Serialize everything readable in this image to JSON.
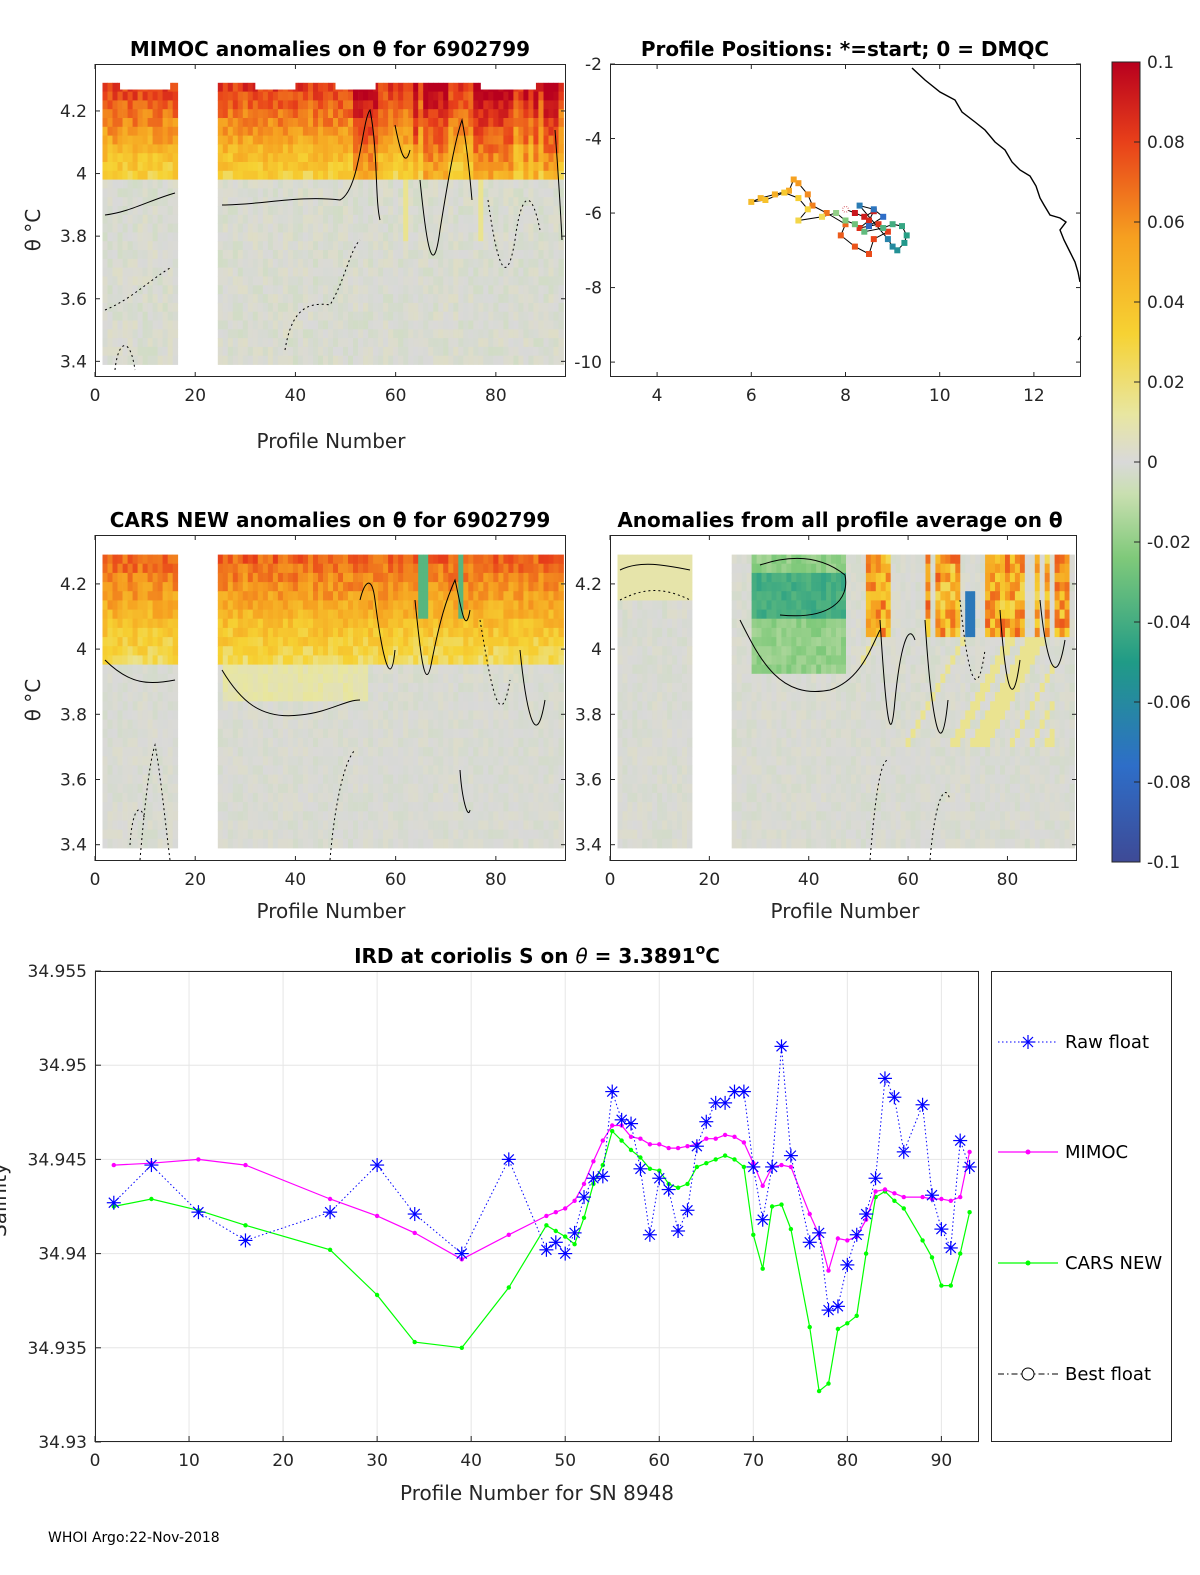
{
  "footer": "WHOI Argo:22-Nov-2018",
  "colorbar": {
    "ticks": [
      "0.1",
      "0.08",
      "0.06",
      "0.04",
      "0.02",
      "0",
      "-0.02",
      "-0.04",
      "-0.06",
      "-0.08",
      "-0.1"
    ],
    "range": [
      -0.1,
      0.1
    ]
  },
  "chart_data": [
    {
      "type": "heatmap",
      "title": "MIMOC anomalies on θ  for 6902799",
      "xlabel": "Profile Number",
      "ylabel": "θ °C",
      "xlim": [
        0,
        94
      ],
      "ylim": [
        3.35,
        4.35
      ],
      "xticks": [
        "0",
        "20",
        "40",
        "60",
        "80"
      ],
      "yticks": [
        "3.4",
        "3.6",
        "3.8",
        "4",
        "4.2"
      ],
      "gap_profiles": [
        17,
        25
      ]
    },
    {
      "type": "scatter",
      "title": "Profile Positions: *=start; 0 = DMQC",
      "xlim": [
        3,
        13
      ],
      "ylim": [
        -10.4,
        -2
      ],
      "xticks": [
        "4",
        "6",
        "8",
        "10",
        "12"
      ],
      "yticks": [
        "-2",
        "-4",
        "-6",
        "-8",
        "-10"
      ],
      "start_lon": 8.0,
      "start_lat": -5.9
    },
    {
      "type": "heatmap",
      "title": "CARS NEW anomalies on θ for 6902799",
      "xlabel": "Profile Number",
      "ylabel": "θ °C",
      "xlim": [
        0,
        94
      ],
      "ylim": [
        3.35,
        4.35
      ],
      "xticks": [
        "0",
        "20",
        "40",
        "60",
        "80"
      ],
      "yticks": [
        "3.4",
        "3.6",
        "3.8",
        "4",
        "4.2"
      ]
    },
    {
      "type": "heatmap",
      "title": "Anomalies from all profile average on θ",
      "xlabel": "Profile Number",
      "xlim": [
        0,
        94
      ],
      "ylim": [
        3.35,
        4.35
      ],
      "xticks": [
        "0",
        "20",
        "40",
        "60",
        "80"
      ],
      "yticks": [
        "3.4",
        "3.6",
        "3.8",
        "4",
        "4.2"
      ]
    },
    {
      "type": "line",
      "title": "IRD at coriolis S on θ = 3.3891°C",
      "title_main": "IRD at coriolis S on ",
      "title_theta": "θ",
      "title_value": " = 3.3891",
      "title_sup": "o",
      "title_unit": "C",
      "xlabel": "Profile Number for SN 8948",
      "ylabel": "Salinity",
      "xlim": [
        0,
        94
      ],
      "ylim": [
        34.93,
        34.955
      ],
      "xticks": [
        "0",
        "10",
        "20",
        "30",
        "40",
        "50",
        "60",
        "70",
        "80",
        "90"
      ],
      "yticks": [
        "34.93",
        "34.935",
        "34.94",
        "34.945",
        "34.95",
        "34.955"
      ],
      "legend": [
        "Raw float",
        "MIMOC",
        "CARS NEW",
        "Best float"
      ],
      "series": [
        {
          "name": "Raw float",
          "color": "#0000ff",
          "x": [
            2,
            6,
            11,
            16,
            25,
            30,
            34,
            39,
            44,
            48,
            49,
            50,
            51,
            52,
            53,
            54,
            55,
            56,
            57,
            58,
            59,
            60,
            61,
            62,
            63,
            64,
            65,
            66,
            67,
            68,
            69,
            70,
            71,
            72,
            73,
            74,
            76,
            77,
            78,
            79,
            80,
            81,
            82,
            83,
            84,
            85,
            86,
            88,
            89,
            90,
            91,
            92,
            93
          ],
          "y": [
            34.9427,
            34.9447,
            34.9422,
            34.9407,
            34.9422,
            34.9447,
            34.9421,
            34.94,
            34.945,
            34.9402,
            34.9406,
            34.94,
            34.9411,
            34.943,
            34.944,
            34.9441,
            34.9486,
            34.9471,
            34.9469,
            34.9445,
            34.941,
            34.944,
            34.9434,
            34.9412,
            34.9423,
            34.9457,
            34.947,
            34.948,
            34.948,
            34.9486,
            34.9486,
            34.9446,
            34.9418,
            34.9446,
            34.951,
            34.9452,
            34.9406,
            34.9411,
            34.937,
            34.9372,
            34.9394,
            34.941,
            34.9421,
            34.944,
            34.9493,
            34.9483,
            34.9454,
            34.9479,
            34.9431,
            34.9413,
            34.9403,
            34.946,
            34.9446
          ]
        },
        {
          "name": "MIMOC",
          "color": "#ff00ff",
          "x": [
            2,
            6,
            11,
            16,
            25,
            30,
            34,
            39,
            44,
            48,
            49,
            50,
            51,
            52,
            53,
            54,
            55,
            56,
            57,
            58,
            59,
            60,
            61,
            62,
            63,
            64,
            65,
            66,
            67,
            68,
            69,
            70,
            71,
            72,
            73,
            74,
            76,
            77,
            78,
            79,
            80,
            81,
            82,
            83,
            84,
            85,
            86,
            88,
            89,
            90,
            91,
            92,
            93
          ],
          "y": [
            34.9447,
            34.9448,
            34.945,
            34.9447,
            34.9429,
            34.942,
            34.9411,
            34.9397,
            34.941,
            34.942,
            34.9422,
            34.9424,
            34.9428,
            34.9437,
            34.9449,
            34.946,
            34.9468,
            34.9468,
            34.9462,
            34.9461,
            34.9458,
            34.9458,
            34.9456,
            34.9456,
            34.9457,
            34.9458,
            34.9461,
            34.9461,
            34.9463,
            34.9462,
            34.9459,
            34.9448,
            34.9436,
            34.9446,
            34.9447,
            34.9446,
            34.9421,
            34.941,
            34.9391,
            34.9408,
            34.9407,
            34.9409,
            34.9418,
            34.9433,
            34.9434,
            34.9432,
            34.943,
            34.943,
            34.9429,
            34.9429,
            34.9428,
            34.943,
            34.9454
          ]
        },
        {
          "name": "CARS NEW",
          "color": "#00ff00",
          "x": [
            2,
            6,
            11,
            16,
            25,
            30,
            34,
            39,
            44,
            48,
            49,
            50,
            51,
            52,
            53,
            54,
            55,
            56,
            57,
            58,
            59,
            60,
            61,
            62,
            63,
            64,
            65,
            66,
            67,
            68,
            69,
            70,
            71,
            72,
            73,
            74,
            76,
            77,
            78,
            79,
            80,
            81,
            82,
            83,
            84,
            85,
            86,
            88,
            89,
            90,
            91,
            92,
            93
          ],
          "y": [
            34.9425,
            34.9429,
            34.9423,
            34.9415,
            34.9402,
            34.9378,
            34.9353,
            34.935,
            34.9382,
            34.9415,
            34.9412,
            34.9409,
            34.9405,
            34.9419,
            34.9437,
            34.9447,
            34.9465,
            34.946,
            34.9455,
            34.9451,
            34.9445,
            34.9444,
            34.9437,
            34.9435,
            34.9437,
            34.9446,
            34.9448,
            34.945,
            34.9452,
            34.945,
            34.9446,
            34.941,
            34.9392,
            34.9425,
            34.9426,
            34.9413,
            34.9361,
            34.9327,
            34.9331,
            34.936,
            34.9363,
            34.9367,
            34.94,
            34.943,
            34.9433,
            34.9428,
            34.9424,
            34.9407,
            34.9398,
            34.9383,
            34.9383,
            34.94,
            34.9422
          ]
        }
      ]
    }
  ]
}
